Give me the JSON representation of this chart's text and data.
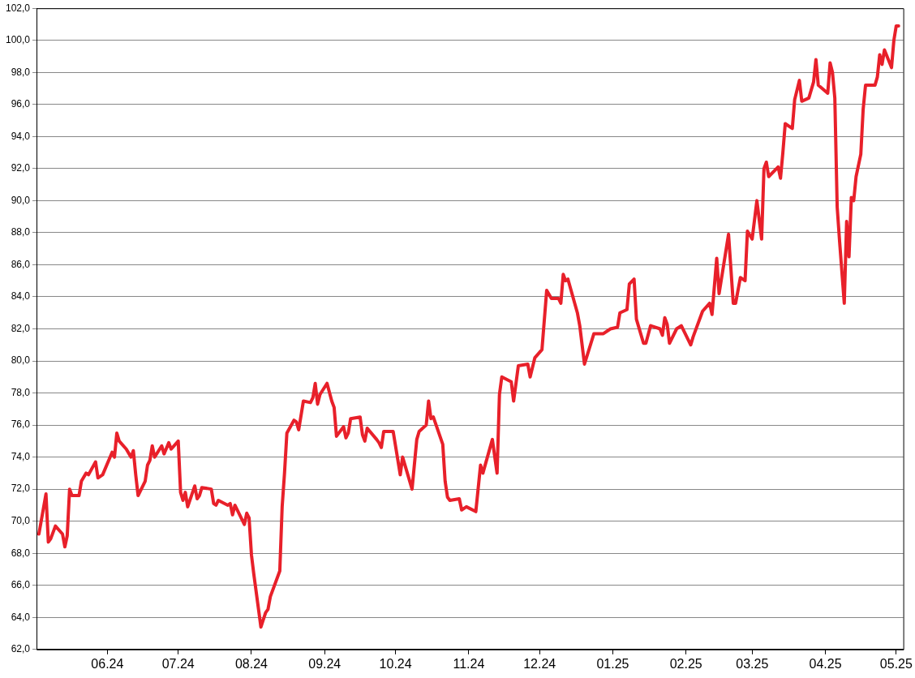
{
  "chart_data": {
    "type": "line",
    "grid": "y",
    "legend": false,
    "marker": "none",
    "line_style": "solid",
    "xlim": [
      "2024-05-02",
      "2025-05-04"
    ],
    "xticks": [
      {
        "value": "2024-06-01",
        "label": "06.24"
      },
      {
        "value": "2024-07-01",
        "label": "07.24"
      },
      {
        "value": "2024-08-01",
        "label": "08.24"
      },
      {
        "value": "2024-09-01",
        "label": "09.24"
      },
      {
        "value": "2024-10-01",
        "label": "10.24"
      },
      {
        "value": "2024-11-01",
        "label": "11.24"
      },
      {
        "value": "2024-12-01",
        "label": "12.24"
      },
      {
        "value": "2025-01-01",
        "label": "01.25"
      },
      {
        "value": "2025-02-01",
        "label": "02.25"
      },
      {
        "value": "2025-03-01",
        "label": "03.25"
      },
      {
        "value": "2025-04-01",
        "label": "04.25"
      },
      {
        "value": "2025-05-01",
        "label": "05.25"
      }
    ],
    "ylim": [
      62,
      102
    ],
    "yticks": [
      {
        "value": 62,
        "label": "62,0"
      },
      {
        "value": 64,
        "label": "64,0"
      },
      {
        "value": 66,
        "label": "66,0"
      },
      {
        "value": 68,
        "label": "68,0"
      },
      {
        "value": 70,
        "label": "70,0"
      },
      {
        "value": 72,
        "label": "72,0"
      },
      {
        "value": 74,
        "label": "74,0"
      },
      {
        "value": 76,
        "label": "76,0"
      },
      {
        "value": 78,
        "label": "78,0"
      },
      {
        "value": 80,
        "label": "80,0"
      },
      {
        "value": 82,
        "label": "82,0"
      },
      {
        "value": 84,
        "label": "84,0"
      },
      {
        "value": 86,
        "label": "86,0"
      },
      {
        "value": 88,
        "label": "88,0"
      },
      {
        "value": 90,
        "label": "90,0"
      },
      {
        "value": 92,
        "label": "92,0"
      },
      {
        "value": 94,
        "label": "94,0"
      },
      {
        "value": 96,
        "label": "96,0"
      },
      {
        "value": 98,
        "label": "98,0"
      },
      {
        "value": 100,
        "label": "100,0"
      },
      {
        "value": 102,
        "label": "102,0"
      }
    ],
    "series": [
      {
        "color": "#e8202a",
        "x": [
          "2024-05-03",
          "2024-05-06",
          "2024-05-07",
          "2024-05-08",
          "2024-05-10",
          "2024-05-13",
          "2024-05-14",
          "2024-05-15",
          "2024-05-16",
          "2024-05-17",
          "2024-05-20",
          "2024-05-21",
          "2024-05-23",
          "2024-05-24",
          "2024-05-27",
          "2024-05-28",
          "2024-05-30",
          "2024-06-03",
          "2024-06-04",
          "2024-06-05",
          "2024-06-06",
          "2024-06-09",
          "2024-06-11",
          "2024-06-12",
          "2024-06-13",
          "2024-06-14",
          "2024-06-17",
          "2024-06-18",
          "2024-06-19",
          "2024-06-20",
          "2024-06-21",
          "2024-06-24",
          "2024-06-25",
          "2024-06-27",
          "2024-06-28",
          "2024-07-01",
          "2024-07-02",
          "2024-07-03",
          "2024-07-04",
          "2024-07-05",
          "2024-07-08",
          "2024-07-09",
          "2024-07-10",
          "2024-07-11",
          "2024-07-15",
          "2024-07-16",
          "2024-07-17",
          "2024-07-18",
          "2024-07-22",
          "2024-07-23",
          "2024-07-24",
          "2024-07-25",
          "2024-07-29",
          "2024-07-30",
          "2024-07-31",
          "2024-08-01",
          "2024-08-02",
          "2024-08-05",
          "2024-08-07",
          "2024-08-08",
          "2024-08-09",
          "2024-08-13",
          "2024-08-14",
          "2024-08-15",
          "2024-08-16",
          "2024-08-19",
          "2024-08-20",
          "2024-08-21",
          "2024-08-23",
          "2024-08-26",
          "2024-08-27",
          "2024-08-28",
          "2024-08-29",
          "2024-08-30",
          "2024-09-02",
          "2024-09-04",
          "2024-09-05",
          "2024-09-06",
          "2024-09-09",
          "2024-09-10",
          "2024-09-11",
          "2024-09-12",
          "2024-09-16",
          "2024-09-17",
          "2024-09-18",
          "2024-09-19",
          "2024-09-23",
          "2024-09-24",
          "2024-09-25",
          "2024-09-26",
          "2024-09-30",
          "2024-10-03",
          "2024-10-04",
          "2024-10-08",
          "2024-10-10",
          "2024-10-11",
          "2024-10-14",
          "2024-10-15",
          "2024-10-16",
          "2024-10-17",
          "2024-10-21",
          "2024-10-22",
          "2024-10-23",
          "2024-10-24",
          "2024-10-28",
          "2024-10-29",
          "2024-10-31",
          "2024-11-04",
          "2024-11-06",
          "2024-11-07",
          "2024-11-11",
          "2024-11-13",
          "2024-11-14",
          "2024-11-15",
          "2024-11-19",
          "2024-11-20",
          "2024-11-22",
          "2024-11-26",
          "2024-11-27",
          "2024-11-29",
          "2024-12-02",
          "2024-12-04",
          "2024-12-06",
          "2024-12-09",
          "2024-12-10",
          "2024-12-11",
          "2024-12-12",
          "2024-12-13",
          "2024-12-17",
          "2024-12-18",
          "2024-12-20",
          "2024-12-24",
          "2024-12-28",
          "2024-12-31",
          "2025-01-03",
          "2025-01-04",
          "2025-01-07",
          "2025-01-08",
          "2025-01-10",
          "2025-01-11",
          "2025-01-14",
          "2025-01-15",
          "2025-01-17",
          "2025-01-21",
          "2025-01-22",
          "2025-01-23",
          "2025-01-24",
          "2025-01-25",
          "2025-01-28",
          "2025-01-30",
          "2025-02-03",
          "2025-02-04",
          "2025-02-08",
          "2025-02-11",
          "2025-02-12",
          "2025-02-14",
          "2025-02-15",
          "2025-02-19",
          "2025-02-21",
          "2025-02-22",
          "2025-02-24",
          "2025-02-26",
          "2025-02-27",
          "2025-03-01",
          "2025-03-03",
          "2025-03-05",
          "2025-03-06",
          "2025-03-07",
          "2025-03-08",
          "2025-03-12",
          "2025-03-13",
          "2025-03-14",
          "2025-03-15",
          "2025-03-18",
          "2025-03-19",
          "2025-03-21",
          "2025-03-22",
          "2025-03-25",
          "2025-03-27",
          "2025-03-28",
          "2025-03-29",
          "2025-04-02",
          "2025-04-03",
          "2025-04-04",
          "2025-04-05",
          "2025-04-06",
          "2025-04-07",
          "2025-04-09",
          "2025-04-10",
          "2025-04-11",
          "2025-04-12",
          "2025-04-13",
          "2025-04-14",
          "2025-04-16",
          "2025-04-17",
          "2025-04-18",
          "2025-04-22",
          "2025-04-23",
          "2025-04-24",
          "2025-04-25",
          "2025-04-26",
          "2025-04-29",
          "2025-04-30",
          "2025-05-01",
          "2025-05-02"
        ],
        "values": [
          69.2,
          71.7,
          68.7,
          68.9,
          69.7,
          69.2,
          68.4,
          69.1,
          72.0,
          71.6,
          71.6,
          72.5,
          73.0,
          72.9,
          73.7,
          72.7,
          72.9,
          74.3,
          74.0,
          75.5,
          75.0,
          74.5,
          74.0,
          74.4,
          72.9,
          71.6,
          72.5,
          73.5,
          73.8,
          74.7,
          74.0,
          74.7,
          74.2,
          74.9,
          74.5,
          75.0,
          71.8,
          71.3,
          71.8,
          70.9,
          72.2,
          71.4,
          71.6,
          72.1,
          72.0,
          71.1,
          71.0,
          71.3,
          71.0,
          71.1,
          70.4,
          71.0,
          69.8,
          70.5,
          70.2,
          67.9,
          66.7,
          63.4,
          64.3,
          64.5,
          65.3,
          66.9,
          70.9,
          73.0,
          75.5,
          76.3,
          76.2,
          75.7,
          77.5,
          77.4,
          77.7,
          78.6,
          77.3,
          77.9,
          78.6,
          77.5,
          77.1,
          75.3,
          75.9,
          75.2,
          75.5,
          76.4,
          76.5,
          75.4,
          75.0,
          75.8,
          75.1,
          74.9,
          74.6,
          75.6,
          75.6,
          72.9,
          74.0,
          72.0,
          75.1,
          75.6,
          76.0,
          77.5,
          76.4,
          76.5,
          74.8,
          72.5,
          71.5,
          71.3,
          71.4,
          70.7,
          70.9,
          70.6,
          73.5,
          73.0,
          75.1,
          73.0,
          77.9,
          79.0,
          78.7,
          77.5,
          79.7,
          79.8,
          79.0,
          80.2,
          80.7,
          84.4,
          83.9,
          83.9,
          83.6,
          85.4,
          85.0,
          85.1,
          83.0,
          82.2,
          79.8,
          81.7,
          81.7,
          82.0,
          82.1,
          83.0,
          83.2,
          84.8,
          85.1,
          82.6,
          81.1,
          81.1,
          82.2,
          82.0,
          81.6,
          82.7,
          82.3,
          81.1,
          82.0,
          82.2,
          81.0,
          81.5,
          83.1,
          83.6,
          82.9,
          86.4,
          84.2,
          87.9,
          83.6,
          83.6,
          85.2,
          85.0,
          88.1,
          87.6,
          90.0,
          87.6,
          92.0,
          92.4,
          91.5,
          92.1,
          91.4,
          93.0,
          94.8,
          94.5,
          96.3,
          97.5,
          96.2,
          96.4,
          97.4,
          98.8,
          97.2,
          96.7,
          98.6,
          98.0,
          96.4,
          89.6,
          87.5,
          83.6,
          88.7,
          86.5,
          90.2,
          90.0,
          91.5,
          92.9,
          95.7,
          97.2,
          97.2,
          97.7,
          99.1,
          98.5,
          99.4,
          98.3,
          100.0,
          100.9,
          100.9
        ]
      }
    ]
  }
}
